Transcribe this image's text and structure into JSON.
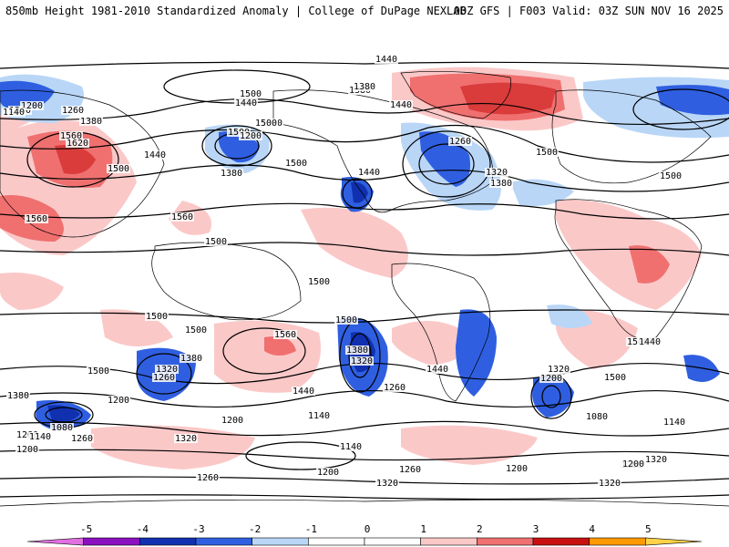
{
  "header": {
    "title_left": "850mb Height 1981-2010 Standardized Anomaly | College of DuPage NEXLAB",
    "title_right": "00Z GFS | F003 Valid: 03Z SUN NOV 16 2025"
  },
  "colors": {
    "neg5": "#e070e0",
    "neg4": "#8a10c0",
    "neg3": "#1030b0",
    "neg2": "#2f5fe0",
    "neg1": "#b9d6f7",
    "zero": "#ffffff",
    "pos1": "#fbc8c8",
    "pos2": "#f07070",
    "pos3": "#c81010",
    "pos4": "#ff9a00",
    "pos5": "#ffd24a"
  },
  "colorbar": {
    "ticks": [
      "-5",
      "-4",
      "-3",
      "-2",
      "-1",
      "0",
      "1",
      "2",
      "3",
      "4",
      "5"
    ]
  },
  "contour_labels": [
    {
      "text": "1440",
      "id": "c1"
    },
    {
      "text": "1500",
      "id": "c2"
    },
    {
      "text": "1380",
      "id": "c3"
    },
    {
      "text": "1260",
      "id": "c4"
    },
    {
      "text": "1320",
      "id": "c5"
    },
    {
      "text": "1200",
      "id": "c6"
    },
    {
      "text": "1140",
      "id": "c7"
    },
    {
      "text": "1080",
      "id": "c8"
    },
    {
      "text": "1560",
      "id": "c9"
    },
    {
      "text": "1620",
      "id": "c10"
    }
  ],
  "map_labels": [
    "1440",
    "1500",
    "1380",
    "1260",
    "1500",
    "1440",
    "1320",
    "1380",
    "1500",
    "1200",
    "1380",
    "1440",
    "1260",
    "1320",
    "1380",
    "1500",
    "1440",
    "1500",
    "1560",
    "1620",
    "1500",
    "1440",
    "1200",
    "1260",
    "1380",
    "1140",
    "1560",
    "1560",
    "1500",
    "1500",
    "1500",
    "1500",
    "1500",
    "1380",
    "1320",
    "1260",
    "1500",
    "1380",
    "1320",
    "1560",
    "1440",
    "1260",
    "1440",
    "1320",
    "1200",
    "1080",
    "1500",
    "1380",
    "1260",
    "1140",
    "1200",
    "1080",
    "1200",
    "1140",
    "1260",
    "1200",
    "1140",
    "1200",
    "1320",
    "1260",
    "1200",
    "1320",
    "1260",
    "1200",
    "1320",
    "1320",
    "1260",
    "1140",
    "1500",
    "1500",
    "1440"
  ]
}
